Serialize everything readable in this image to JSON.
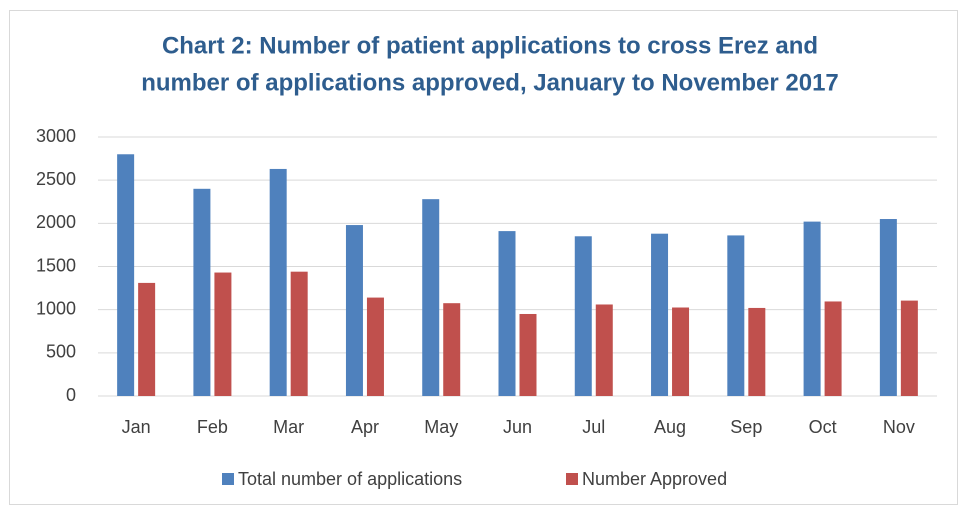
{
  "chart_data": {
    "type": "bar",
    "title": [
      "Chart 2: Number of patient applications to cross Erez and",
      "number of applications approved, January to November 2017"
    ],
    "categories": [
      "Jan",
      "Feb",
      "Mar",
      "Apr",
      "May",
      "Jun",
      "Jul",
      "Aug",
      "Sep",
      "Oct",
      "Nov"
    ],
    "series": [
      {
        "name": "Total number of applications",
        "color": "#4f81bd",
        "values": [
          2800,
          2400,
          2630,
          1980,
          2280,
          1910,
          1850,
          1880,
          1860,
          2020,
          2050
        ]
      },
      {
        "name": "Number Approved",
        "color": "#c0504d",
        "values": [
          1310,
          1430,
          1440,
          1140,
          1075,
          950,
          1060,
          1025,
          1020,
          1095,
          1105
        ]
      }
    ],
    "ylim": [
      0,
      3000
    ],
    "yticks": [
      0,
      500,
      1000,
      1500,
      2000,
      2500,
      3000
    ],
    "grid": true,
    "legend": "bottom"
  }
}
